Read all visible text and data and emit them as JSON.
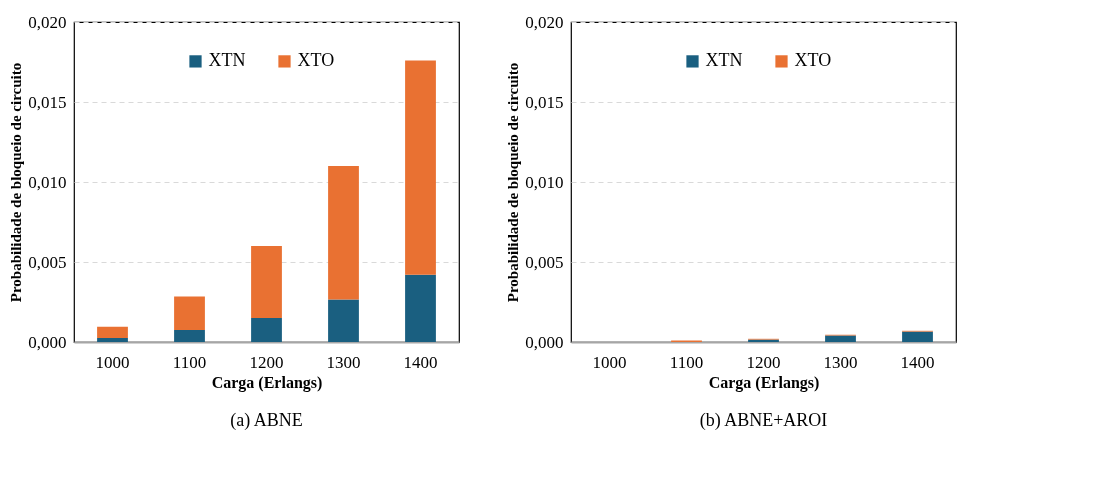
{
  "chart_data": [
    {
      "type": "bar",
      "title": "(a)  ABNE",
      "xlabel": "Carga (Erlangs)",
      "ylabel": "Probabilidade de bloqueio de circuito",
      "categories": [
        "1000",
        "1100",
        "1200",
        "1300",
        "1400"
      ],
      "stacked": true,
      "legend": "top",
      "grid": "y",
      "ylim": [
        0,
        0.02
      ],
      "yticks": [
        {
          "value": 0,
          "label": "0,000"
        },
        {
          "value": 0.005,
          "label": "0,005"
        },
        {
          "value": 0.01,
          "label": "0,010"
        },
        {
          "value": 0.015,
          "label": "0,015"
        },
        {
          "value": 0.02,
          "label": "0,020"
        }
      ],
      "series": [
        {
          "name": "XTN",
          "color": "#1a5f80",
          "values": [
            0.00025,
            0.00075,
            0.0015,
            0.00265,
            0.0042
          ]
        },
        {
          "name": "XTO",
          "color": "#e97132",
          "values": [
            0.0007,
            0.0021,
            0.0045,
            0.00835,
            0.0134
          ]
        }
      ]
    },
    {
      "type": "bar",
      "title": "(b)  ABNE+AROI",
      "xlabel": "Carga (Erlangs)",
      "ylabel": "Probabilidade de bloqueio de circuito",
      "categories": [
        "1000",
        "1100",
        "1200",
        "1300",
        "1400"
      ],
      "stacked": true,
      "legend": "top",
      "grid": "y",
      "ylim": [
        0,
        0.02
      ],
      "yticks": [
        {
          "value": 0,
          "label": "0,000"
        },
        {
          "value": 0.005,
          "label": "0,005"
        },
        {
          "value": 0.01,
          "label": "0,010"
        },
        {
          "value": 0.015,
          "label": "0,015"
        },
        {
          "value": 0.02,
          "label": "0,020"
        }
      ],
      "series": [
        {
          "name": "XTN",
          "color": "#1a5f80",
          "values": [
            0,
            0,
            0.00015,
            0.0004,
            0.00065
          ]
        },
        {
          "name": "XTO",
          "color": "#e97132",
          "values": [
            0,
            0.0001,
            5e-05,
            5e-05,
            5e-05
          ]
        }
      ]
    }
  ]
}
